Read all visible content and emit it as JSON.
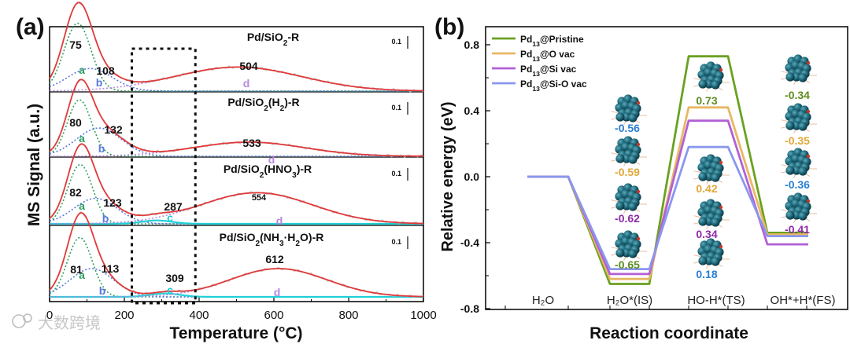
{
  "panel_a": {
    "label": "(a)",
    "xlabel": "Temperature (°C)",
    "ylabel": "MS Signal (a.u.)",
    "xticks": [
      "0",
      "200",
      "400",
      "600",
      "800",
      "1000"
    ],
    "scale_bar": "0.1",
    "samples": [
      {
        "title_main": "Pd/SiO",
        "title_sub": "2",
        "title_tail": "-R",
        "peaks": {
          "a": "75",
          "b": "108",
          "d": "504"
        }
      },
      {
        "title_main": "Pd/SiO",
        "title_sub": "2",
        "title_tail": "(H",
        "title_sub2": "2",
        "title_tail2": ")-R",
        "peaks": {
          "a": "80",
          "b": "132",
          "d": "533"
        }
      },
      {
        "title_main": "Pd/SiO",
        "title_sub": "2",
        "title_tail": "(HNO",
        "title_sub2": "3",
        "title_tail2": ")-R",
        "peaks": {
          "a": "82",
          "b": "123",
          "c": "287",
          "d": "554"
        }
      },
      {
        "title_main": "Pd/SiO",
        "title_sub": "2",
        "title_tail": "(NH",
        "title_sub2": "3",
        "title_tail2": "·H",
        "title_sub3": "2",
        "title_tail3": "O)-R",
        "peaks": {
          "a": "81",
          "b": "113",
          "c": "309",
          "d": "612"
        }
      }
    ],
    "component_letters": {
      "a": "a",
      "b": "b",
      "c": "c",
      "d": "d"
    }
  },
  "panel_b": {
    "label": "(b)",
    "xlabel": "Reaction coordinate",
    "ylabel": "Relative energy (eV)",
    "yticks": [
      "0.8",
      "0.4",
      "0.0",
      "-0.4",
      "-0.8"
    ],
    "states": [
      "H₂O",
      "H₂O*(IS)",
      "HO-H*(TS)",
      "OH*+H*(FS)"
    ],
    "energy_labels": {
      "is": [
        "-0.56",
        "-0.59",
        "-0.62",
        "-0.65"
      ],
      "ts": [
        "0.73",
        "0.42",
        "0.34",
        "0.18"
      ],
      "fs": [
        "-0.34",
        "-0.35",
        "-0.36",
        "-0.41"
      ]
    },
    "legend": [
      {
        "main": "Pd",
        "sub": "13",
        "tail": "@Pristine"
      },
      {
        "main": "Pd",
        "sub": "13",
        "tail": "@O vac"
      },
      {
        "main": "Pd",
        "sub": "13",
        "tail": "@Si vac"
      },
      {
        "main": "Pd",
        "sub": "13",
        "tail": "@Si-O vac"
      }
    ]
  },
  "watermark": "大数跨境",
  "colors": {
    "pristine": "#6aa121",
    "o_vac": "#e8b863",
    "si_vac": "#b35fd6",
    "sio_vac": "#8a97ee",
    "fit": "#e03a3a",
    "comp_a": "#2fa060",
    "comp_b": "#5a78e0",
    "comp_c": "#1fd0d8",
    "comp_d": "#b48ae0"
  },
  "chart_data": [
    {
      "type": "line",
      "title": "(a)",
      "xlabel": "Temperature (°C)",
      "ylabel": "MS Signal (a.u.)",
      "xlim": [
        0,
        1000
      ],
      "series": [
        {
          "name": "Pd/SiO2-R",
          "peak_temperatures": [
            75,
            108,
            504
          ],
          "components": [
            {
              "name": "a",
              "center": 75,
              "height": 0.24,
              "width": 36
            },
            {
              "name": "b",
              "center": 108,
              "height": 0.08,
              "width": 60
            },
            {
              "name": "d",
              "center": 504,
              "height": 0.085,
              "width": 170
            }
          ]
        },
        {
          "name": "Pd/SiO2(H2)-R",
          "peak_temperatures": [
            80,
            132,
            533
          ],
          "components": [
            {
              "name": "a",
              "center": 80,
              "height": 0.2,
              "width": 32
            },
            {
              "name": "b",
              "center": 132,
              "height": 0.1,
              "width": 60
            },
            {
              "name": "d",
              "center": 533,
              "height": 0.05,
              "width": 150
            }
          ]
        },
        {
          "name": "Pd/SiO2(HNO3)-R",
          "peak_temperatures": [
            82,
            123,
            287,
            554
          ],
          "components": [
            {
              "name": "a",
              "center": 82,
              "height": 0.21,
              "width": 33
            },
            {
              "name": "b",
              "center": 123,
              "height": 0.09,
              "width": 58
            },
            {
              "name": "c",
              "center": 287,
              "height": 0.012,
              "width": 40
            },
            {
              "name": "d",
              "center": 554,
              "height": 0.11,
              "width": 150
            }
          ]
        },
        {
          "name": "Pd/SiO2(NH3·H2O)-R",
          "peak_temperatures": [
            81,
            113,
            309,
            612
          ],
          "components": [
            {
              "name": "a",
              "center": 81,
              "height": 0.21,
              "width": 33
            },
            {
              "name": "b",
              "center": 113,
              "height": 0.1,
              "width": 58
            },
            {
              "name": "c",
              "center": 309,
              "height": 0.012,
              "width": 40
            },
            {
              "name": "d",
              "center": 612,
              "height": 0.1,
              "width": 130
            }
          ]
        }
      ],
      "annotation": "dashed box highlighting 220-390 °C"
    },
    {
      "type": "line",
      "title": "(b)",
      "xlabel": "Reaction coordinate",
      "ylabel": "Relative energy (eV)",
      "ylim": [
        -0.8,
        0.8
      ],
      "categories": [
        "H2O",
        "H2O*(IS)",
        "HO-H*(TS)",
        "OH*+H*(FS)"
      ],
      "series": [
        {
          "name": "Pd13@Pristine",
          "values": [
            0.0,
            -0.65,
            0.73,
            -0.34
          ]
        },
        {
          "name": "Pd13@O vac",
          "values": [
            0.0,
            -0.62,
            0.42,
            -0.35
          ]
        },
        {
          "name": "Pd13@Si vac",
          "values": [
            0.0,
            -0.59,
            0.34,
            -0.41
          ]
        },
        {
          "name": "Pd13@Si-O vac",
          "values": [
            0.0,
            -0.56,
            0.18,
            -0.36
          ]
        }
      ]
    }
  ]
}
